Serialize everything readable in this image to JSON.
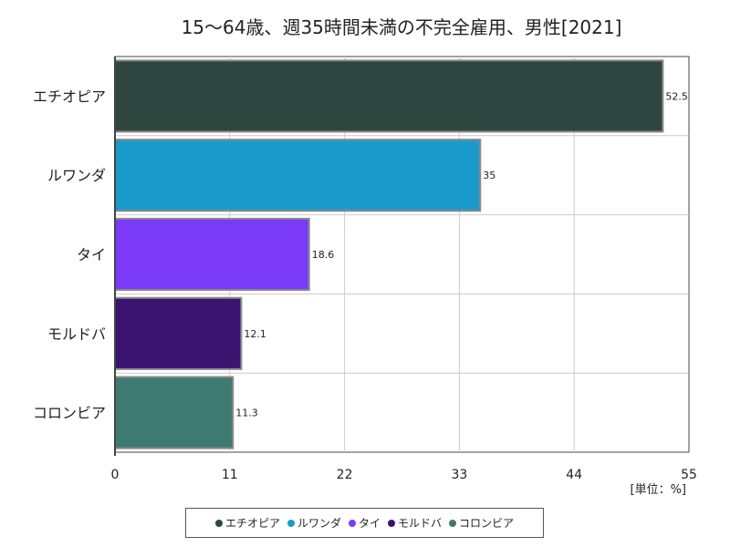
{
  "chart_data": {
    "type": "bar",
    "orientation": "horizontal",
    "title": "15～64歳、週35時間未満の不完全雇用、男性[2021]",
    "unit_label": "[単位：%]",
    "categories": [
      "エチオピア",
      "ルワンダ",
      "タイ",
      "モルドバ",
      "コロンビア"
    ],
    "values": [
      52.5,
      35,
      18.6,
      12.1,
      11.3
    ],
    "value_labels": [
      "52.5",
      "35",
      "18.6",
      "12.1",
      "11.3"
    ],
    "colors": [
      "#2f4640",
      "#1a9acb",
      "#7b3af7",
      "#3a1470",
      "#3d7a72"
    ],
    "xlim": [
      0,
      55
    ],
    "xticks": [
      0,
      11,
      22,
      33,
      44,
      55
    ],
    "grid": true,
    "legend": {
      "placement": "bottom",
      "entries": [
        "エチオピア",
        "ルワンダ",
        "タイ",
        "モルドバ",
        "コロンビア"
      ]
    }
  }
}
